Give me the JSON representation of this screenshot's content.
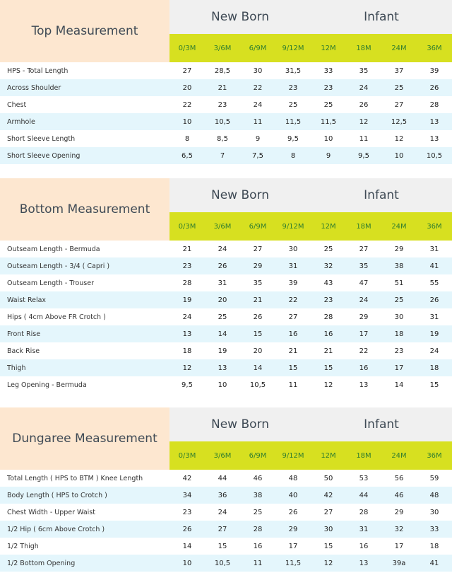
{
  "sizes": [
    "0/3M",
    "3/6M",
    "6/9M",
    "9/12M",
    "12M",
    "18M",
    "24M",
    "36M"
  ],
  "groups": {
    "newborn": "New Born",
    "infant": "Infant"
  },
  "tables": [
    {
      "title": "Top Measurement",
      "rows": [
        {
          "label": "HPS - Total Length",
          "values": [
            "27",
            "28,5",
            "30",
            "31,5",
            "33",
            "35",
            "37",
            "39"
          ]
        },
        {
          "label": "Across Shoulder",
          "values": [
            "20",
            "21",
            "22",
            "23",
            "23",
            "24",
            "25",
            "26"
          ]
        },
        {
          "label": "Chest",
          "values": [
            "22",
            "23",
            "24",
            "25",
            "25",
            "26",
            "27",
            "28"
          ]
        },
        {
          "label": "Armhole",
          "values": [
            "10",
            "10,5",
            "11",
            "11,5",
            "11,5",
            "12",
            "12,5",
            "13"
          ]
        },
        {
          "label": "Short Sleeve Length",
          "values": [
            "8",
            "8,5",
            "9",
            "9,5",
            "10",
            "11",
            "12",
            "13"
          ]
        },
        {
          "label": "Short Sleeve Opening",
          "values": [
            "6,5",
            "7",
            "7,5",
            "8",
            "9",
            "9,5",
            "10",
            "10,5"
          ]
        }
      ]
    },
    {
      "title": "Bottom Measurement",
      "rows": [
        {
          "label": "Outseam Length - Bermuda",
          "values": [
            "21",
            "24",
            "27",
            "30",
            "25",
            "27",
            "29",
            "31"
          ]
        },
        {
          "label": "Outseam Length - 3/4 ( Capri )",
          "values": [
            "23",
            "26",
            "29",
            "31",
            "32",
            "35",
            "38",
            "41"
          ]
        },
        {
          "label": "Outseam Length - Trouser",
          "values": [
            "28",
            "31",
            "35",
            "39",
            "43",
            "47",
            "51",
            "55"
          ]
        },
        {
          "label": "Waist Relax",
          "values": [
            "19",
            "20",
            "21",
            "22",
            "23",
            "24",
            "25",
            "26"
          ]
        },
        {
          "label": "Hips ( 4cm Above FR Crotch )",
          "values": [
            "24",
            "25",
            "26",
            "27",
            "28",
            "29",
            "30",
            "31"
          ]
        },
        {
          "label": "Front Rise",
          "values": [
            "13",
            "14",
            "15",
            "16",
            "16",
            "17",
            "18",
            "19"
          ]
        },
        {
          "label": "Back Rise",
          "values": [
            "18",
            "19",
            "20",
            "21",
            "21",
            "22",
            "23",
            "24"
          ]
        },
        {
          "label": "Thigh",
          "values": [
            "12",
            "13",
            "14",
            "15",
            "15",
            "16",
            "17",
            "18"
          ]
        },
        {
          "label": "Leg Opening - Bermuda",
          "values": [
            "9,5",
            "10",
            "10,5",
            "11",
            "12",
            "13",
            "14",
            "15"
          ]
        }
      ]
    },
    {
      "title": "Dungaree Measurement",
      "rows": [
        {
          "label": "Total Length ( HPS to BTM ) Knee Length",
          "values": [
            "42",
            "44",
            "46",
            "48",
            "50",
            "53",
            "56",
            "59"
          ]
        },
        {
          "label": "Body Length ( HPS to Crotch )",
          "values": [
            "34",
            "36",
            "38",
            "40",
            "42",
            "44",
            "46",
            "48"
          ]
        },
        {
          "label": "Chest Width - Upper Waist",
          "values": [
            "23",
            "24",
            "25",
            "26",
            "27",
            "28",
            "29",
            "30"
          ]
        },
        {
          "label": "1/2 Hip ( 6cm Above Crotch )",
          "values": [
            "26",
            "27",
            "28",
            "29",
            "30",
            "31",
            "32",
            "33"
          ]
        },
        {
          "label": "1/2 Thigh",
          "values": [
            "14",
            "15",
            "16",
            "17",
            "15",
            "16",
            "17",
            "18"
          ]
        },
        {
          "label": "1/2 Bottom Opening",
          "values": [
            "10",
            "10,5",
            "11",
            "11,5",
            "12",
            "13",
            "39a",
            "41"
          ]
        }
      ]
    }
  ]
}
